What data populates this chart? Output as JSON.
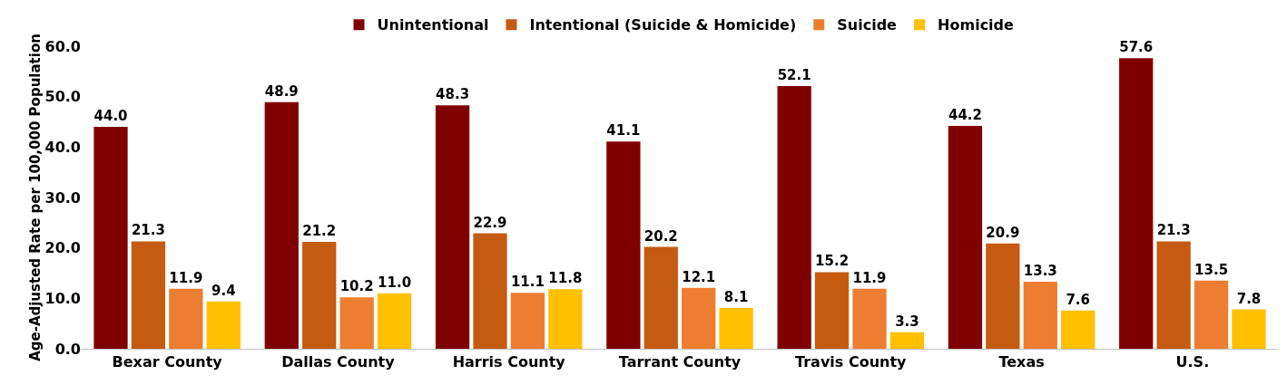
{
  "chart_data": {
    "type": "bar",
    "ylabel": "Age-Adjusted Rate per 100,000 Population",
    "categories": [
      "Bexar County",
      "Dallas County",
      "Harris County",
      "Tarrant County",
      "Travis County",
      "Texas",
      "U.S."
    ],
    "series": [
      {
        "name": "Unintentional",
        "color": "#800000",
        "values": [
          44.0,
          48.9,
          48.3,
          41.1,
          52.1,
          44.2,
          57.6
        ],
        "value_labels": [
          "44.0",
          "48.9",
          "48.3",
          "41.1",
          "52.1",
          "44.2",
          "57.6"
        ]
      },
      {
        "name": "Intentional (Suicide & Homicide)",
        "color": "#c55a11",
        "values": [
          21.3,
          21.2,
          22.9,
          20.2,
          15.2,
          20.9,
          21.3
        ],
        "value_labels": [
          "21.3",
          "21.2",
          "22.9",
          "20.2",
          "15.2",
          "20.9",
          "21.3"
        ]
      },
      {
        "name": "Suicide",
        "color": "#ed7d31",
        "values": [
          11.9,
          10.2,
          11.1,
          12.1,
          11.9,
          13.3,
          13.5
        ],
        "value_labels": [
          "11.9",
          "10.2",
          "11.1",
          "12.1",
          "11.9",
          "13.3",
          "13.5"
        ]
      },
      {
        "name": "Homicide",
        "color": "#ffc000",
        "values": [
          9.4,
          11.0,
          11.8,
          8.1,
          3.3,
          7.6,
          7.8
        ],
        "value_labels": [
          "9.4",
          "11.0",
          "11.8",
          "8.1",
          "3.3",
          "7.6",
          "7.8"
        ]
      }
    ],
    "ylim": [
      0,
      60
    ],
    "yticks": [
      {
        "value": 0,
        "label": "0.0"
      },
      {
        "value": 10,
        "label": "10.0"
      },
      {
        "value": 20,
        "label": "20.0"
      },
      {
        "value": 30,
        "label": "30.0"
      },
      {
        "value": 40,
        "label": "40.0"
      },
      {
        "value": 50,
        "label": "50.0"
      },
      {
        "value": 60,
        "label": "60.0"
      }
    ],
    "grid": false,
    "legend": "top"
  }
}
